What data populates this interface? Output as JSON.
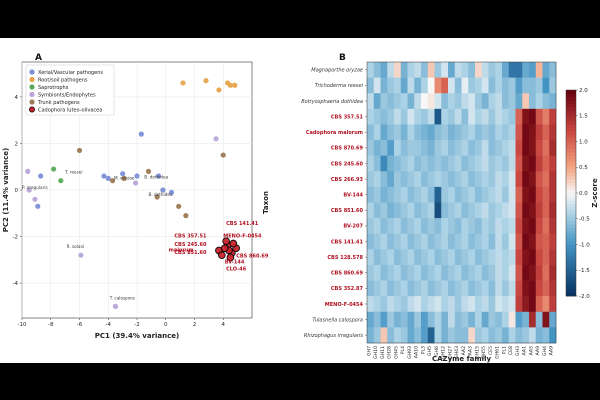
{
  "chart_data": [
    {
      "panel": "A",
      "type": "scatter",
      "xlabel": "PC1 (39.4% variance)",
      "ylabel": "PC2 (11.4% variance)",
      "xlim": [
        -10,
        6
      ],
      "ylim": [
        -5.5,
        5.5
      ],
      "xticks": [
        -10,
        -8,
        -6,
        -4,
        -2,
        0,
        2,
        4
      ],
      "yticks": [
        -4,
        -2,
        0,
        2,
        4
      ],
      "grid": true,
      "legend": "top-left",
      "series": [
        {
          "name": "Xerial/Vascular pathogens",
          "color": "#7a8fd6",
          "points": [
            [
              -8.7,
              0.6
            ],
            [
              -4.3,
              0.6
            ],
            [
              -4.0,
              0.5
            ],
            [
              -3.0,
              0.7
            ],
            [
              -2.0,
              0.6
            ],
            [
              -1.7,
              2.4
            ],
            [
              -0.5,
              0.6
            ],
            [
              -0.2,
              0.0
            ],
            [
              0.4,
              -0.1
            ],
            [
              -8.9,
              -0.7
            ]
          ]
        },
        {
          "name": "Root/soil pathogens",
          "color": "#e6a44a",
          "points": [
            [
              1.2,
              4.6
            ],
            [
              2.8,
              4.7
            ],
            [
              3.7,
              4.3
            ],
            [
              4.3,
              4.6
            ],
            [
              4.5,
              4.5
            ],
            [
              4.8,
              4.5
            ]
          ]
        },
        {
          "name": "Saprotrophs",
          "color": "#5aaa5a",
          "points": [
            [
              -7.8,
              0.9
            ],
            [
              -7.3,
              0.4
            ]
          ]
        },
        {
          "name": "Symbionts/Endophytes",
          "color": "#b8a6d8",
          "points": [
            [
              -9.6,
              0.8
            ],
            [
              -9.5,
              0.0
            ],
            [
              -9.1,
              -0.4
            ],
            [
              -5.9,
              -2.8
            ],
            [
              -2.1,
              0.3
            ],
            [
              3.5,
              2.2
            ],
            [
              -3.5,
              -5.0
            ]
          ]
        },
        {
          "name": "Trunk pathogens",
          "color": "#9c7a52",
          "points": [
            [
              -6.0,
              1.7
            ],
            [
              -3.7,
              0.4
            ],
            [
              -2.9,
              0.5
            ],
            [
              -1.2,
              0.8
            ],
            [
              0.9,
              -0.7
            ],
            [
              1.4,
              -1.1
            ],
            [
              4.0,
              1.5
            ],
            [
              -0.6,
              -0.3
            ]
          ]
        },
        {
          "name": "Cadophora luteo-olivacea",
          "color": "#c8232c",
          "points": [
            [
              3.7,
              -2.6
            ],
            [
              4.3,
              -2.4
            ],
            [
              4.6,
              -2.7
            ],
            [
              4.5,
              -2.9
            ],
            [
              4.9,
              -2.5
            ],
            [
              4.2,
              -2.2
            ],
            [
              3.9,
              -2.8
            ],
            [
              4.7,
              -2.3
            ],
            [
              4.4,
              -2.6
            ],
            [
              4.1,
              -2.5
            ]
          ]
        }
      ],
      "annotations_gray": [
        {
          "text": "M. oryzae",
          "x": -3.6,
          "y": 0.45
        },
        {
          "text": "T. reesei",
          "x": -7.0,
          "y": 0.7
        },
        {
          "text": "B. dothidea",
          "x": -1.5,
          "y": 0.5
        },
        {
          "text": "P. irregularis",
          "x": -10.0,
          "y": 0.05
        },
        {
          "text": "R. solani",
          "x": -6.9,
          "y": -2.5
        },
        {
          "text": "T. calospora",
          "x": -3.9,
          "y": -4.7
        },
        {
          "text": "B. dothidea",
          "x": -1.2,
          "y": -0.25
        }
      ],
      "annotations_red": [
        {
          "text": "CBS 141.41",
          "x": 4.2,
          "y": -1.5
        },
        {
          "text": "CBS 357.51",
          "x": 0.6,
          "y": -2.05
        },
        {
          "text": "MENO-F-0454",
          "x": 4.0,
          "y": -2.05
        },
        {
          "text": "malorum",
          "x": 0.2,
          "y": -2.65
        },
        {
          "text": "CBS 245.60",
          "x": 0.6,
          "y": -2.4
        },
        {
          "text": "CBS 851.60",
          "x": 0.6,
          "y": -2.75
        },
        {
          "text": "CBS 860.69",
          "x": 4.9,
          "y": -2.9
        },
        {
          "text": "BV-144",
          "x": 4.1,
          "y": -3.15
        },
        {
          "text": "CLO-46",
          "x": 4.2,
          "y": -3.45
        }
      ]
    },
    {
      "panel": "B",
      "type": "heatmap",
      "xlabel": "CAZyme family",
      "ylabel": "Taxon",
      "colorbar_label": "Z-score",
      "colorbar_ticks": [
        2.0,
        1.5,
        1.0,
        0.5,
        0.0,
        -0.5,
        -1.0,
        -1.5,
        -2.0
      ],
      "vmin": -2.0,
      "vmax": 2.0,
      "rows": [
        {
          "label": "Magnaporthe oryzae",
          "highlight": false
        },
        {
          "label": "Trichoderma reesei",
          "highlight": false
        },
        {
          "label": "Botryosphaeria dothidea",
          "highlight": false
        },
        {
          "label": "CBS 357.51",
          "highlight": true
        },
        {
          "label": "Cadophora malorum",
          "highlight": true
        },
        {
          "label": "CBS 870.69",
          "highlight": true
        },
        {
          "label": "CBS 245.60",
          "highlight": true
        },
        {
          "label": "CBS 266.93",
          "highlight": true
        },
        {
          "label": "BV-144",
          "highlight": true
        },
        {
          "label": "CBS 851.60",
          "highlight": true
        },
        {
          "label": "BV-207",
          "highlight": true
        },
        {
          "label": "CBS 141.41",
          "highlight": true
        },
        {
          "label": "CBS 128.578",
          "highlight": true
        },
        {
          "label": "CBS 860.69",
          "highlight": true
        },
        {
          "label": "CBS 352.87",
          "highlight": true
        },
        {
          "label": "MENO-F-0454",
          "highlight": true
        },
        {
          "label": "Tulasnella calospora",
          "highlight": false
        },
        {
          "label": "Rhizophagus irregularis",
          "highlight": false
        }
      ],
      "columns": [
        "GH7",
        "GH10",
        "GH11",
        "GH28",
        "GH45",
        "PL4",
        "GH93",
        "AA10",
        "PL3",
        "GH5",
        "GH6",
        "GH12",
        "GH27",
        "GH43",
        "AA2",
        "AA3",
        "GH15",
        "GH55",
        "CE5",
        "GH61",
        "PL1",
        "CE8",
        "GH3",
        "AA1",
        "AA5",
        "AA9",
        "GH4",
        "AA9"
      ],
      "values": [
        [
          -0.4,
          -0.6,
          -0.8,
          -0.3,
          0.2,
          -0.7,
          -0.4,
          -0.3,
          -0.6,
          0.3,
          -0.5,
          -0.2,
          -0.8,
          -0.3,
          -0.4,
          -0.6,
          0.2,
          -0.3,
          -0.5,
          -0.4,
          -0.8,
          -1.3,
          -1.3,
          -0.8,
          -0.9,
          0.4,
          -0.8,
          -0.6
        ],
        [
          -0.6,
          -0.2,
          -0.7,
          -0.5,
          -0.4,
          -0.8,
          -0.3,
          -0.7,
          -0.4,
          0.0,
          0.7,
          1.0,
          -0.2,
          -0.6,
          -0.1,
          -0.5,
          -0.4,
          -0.2,
          -0.6,
          -0.4,
          -0.6,
          -0.5,
          -0.9,
          -0.6,
          -0.6,
          -0.5,
          -1.0,
          -0.5
        ],
        [
          -0.3,
          -0.8,
          -0.5,
          -0.6,
          -0.5,
          -0.4,
          -0.7,
          -0.3,
          0.0,
          0.1,
          -0.2,
          -0.6,
          -0.4,
          -0.5,
          -0.3,
          -0.2,
          -0.5,
          -0.7,
          -0.4,
          -0.3,
          -0.6,
          -0.5,
          -0.8,
          0.3,
          -0.6,
          -0.4,
          -0.6,
          -0.7
        ],
        [
          -0.4,
          -0.5,
          -0.6,
          -0.5,
          -0.3,
          -0.5,
          -0.2,
          -0.4,
          -0.5,
          -0.3,
          -1.6,
          -0.4,
          -0.5,
          -0.3,
          -0.6,
          -0.2,
          -0.4,
          -0.3,
          -0.5,
          -0.3,
          -0.4,
          -0.5,
          1.0,
          1.8,
          1.9,
          1.1,
          0.8,
          1.3
        ],
        [
          -0.6,
          -0.4,
          -0.8,
          -0.6,
          -0.5,
          -0.7,
          -0.4,
          -0.6,
          -0.7,
          -0.8,
          -0.6,
          -0.5,
          -0.7,
          -0.6,
          -0.5,
          -0.4,
          -0.6,
          -0.5,
          -0.6,
          -0.4,
          -0.5,
          -0.4,
          1.1,
          1.9,
          1.8,
          1.3,
          1.0,
          1.4
        ],
        [
          -0.5,
          -0.7,
          -0.6,
          -0.9,
          -0.4,
          -0.6,
          -0.5,
          -0.5,
          -0.6,
          -0.7,
          -0.5,
          -0.4,
          -0.6,
          -0.5,
          -0.4,
          -0.6,
          -0.5,
          -0.3,
          -0.6,
          -0.5,
          -0.4,
          -0.3,
          1.2,
          1.9,
          1.8,
          1.2,
          0.9,
          1.5
        ],
        [
          -0.4,
          -0.6,
          -1.1,
          -0.7,
          -0.6,
          -0.5,
          -0.4,
          -0.6,
          -0.5,
          -0.6,
          -0.5,
          -0.6,
          -0.5,
          -0.4,
          -0.6,
          -0.5,
          -0.4,
          -0.3,
          -0.5,
          -0.4,
          -0.5,
          -0.3,
          1.1,
          1.8,
          1.9,
          1.3,
          1.0,
          1.3
        ],
        [
          -0.5,
          -0.4,
          -0.6,
          -0.8,
          -0.5,
          -0.6,
          -0.5,
          -0.4,
          -0.6,
          -0.5,
          -0.4,
          -0.5,
          -0.6,
          -0.5,
          -0.4,
          -0.6,
          -0.5,
          -0.4,
          -0.5,
          -0.3,
          -0.4,
          -0.2,
          1.2,
          1.9,
          1.8,
          1.1,
          0.9,
          1.4
        ],
        [
          -0.6,
          -0.5,
          -0.7,
          -0.6,
          -0.5,
          -0.4,
          -0.6,
          -0.5,
          -0.4,
          -0.6,
          -1.5,
          -0.5,
          -0.4,
          -0.6,
          -0.5,
          -0.4,
          -0.6,
          -0.5,
          -0.4,
          -0.3,
          -0.5,
          -0.2,
          1.0,
          1.8,
          1.9,
          1.2,
          1.0,
          1.4
        ],
        [
          -0.4,
          -0.6,
          -0.5,
          -0.7,
          -0.6,
          -0.5,
          -0.4,
          -0.6,
          -0.5,
          -0.4,
          -1.7,
          -0.6,
          -0.5,
          -0.4,
          -0.6,
          -0.5,
          -0.4,
          -0.3,
          -0.5,
          -0.4,
          -0.3,
          -0.2,
          1.1,
          1.9,
          1.8,
          1.3,
          1.0,
          1.5
        ],
        [
          -0.5,
          -0.4,
          -0.6,
          -0.5,
          -0.4,
          -0.6,
          -0.5,
          -0.4,
          -0.6,
          -0.5,
          -0.6,
          -0.4,
          -0.5,
          -0.6,
          -0.4,
          -0.5,
          -0.6,
          -0.4,
          -0.5,
          -0.3,
          -0.4,
          -0.3,
          1.2,
          1.8,
          1.9,
          1.2,
          0.9,
          1.4
        ],
        [
          -0.6,
          -0.5,
          -0.4,
          -0.6,
          -0.5,
          -0.4,
          -0.6,
          -0.5,
          -0.4,
          -0.6,
          -0.5,
          -0.4,
          -0.6,
          -0.5,
          -0.4,
          -0.6,
          -0.5,
          -0.4,
          -0.6,
          -0.3,
          -0.5,
          -0.2,
          1.1,
          1.9,
          1.8,
          1.1,
          1.0,
          1.3
        ],
        [
          -0.4,
          -0.6,
          -0.5,
          -0.4,
          -0.6,
          -0.5,
          -0.4,
          -0.6,
          -0.5,
          -0.4,
          -0.6,
          -0.5,
          -0.4,
          -0.6,
          -0.5,
          -0.4,
          -0.6,
          -0.5,
          -0.4,
          -0.3,
          -0.4,
          -0.3,
          1.2,
          1.8,
          1.9,
          1.2,
          1.0,
          1.4
        ],
        [
          -0.5,
          -0.4,
          -0.6,
          -0.5,
          -0.4,
          -0.6,
          -0.5,
          -0.4,
          -0.6,
          -0.5,
          -0.4,
          -0.6,
          -0.5,
          -0.4,
          -0.6,
          -0.5,
          -0.4,
          -0.6,
          -0.5,
          -0.3,
          -0.4,
          -0.2,
          1.1,
          1.9,
          1.8,
          1.3,
          0.9,
          1.5
        ],
        [
          -0.6,
          -0.5,
          -0.4,
          -0.6,
          -0.5,
          -0.4,
          -0.6,
          -0.5,
          -0.4,
          -0.6,
          -0.5,
          -0.4,
          -0.6,
          -0.5,
          -0.4,
          -0.6,
          -0.5,
          -0.4,
          -0.6,
          -0.3,
          -0.5,
          -0.3,
          1.2,
          1.8,
          1.9,
          1.2,
          1.0,
          1.4
        ],
        [
          -0.3,
          -0.4,
          -0.5,
          -0.3,
          -0.4,
          -0.5,
          -0.3,
          -0.2,
          -0.4,
          -0.3,
          -0.2,
          -0.4,
          -0.3,
          -0.5,
          -0.3,
          -0.2,
          -0.4,
          -0.3,
          -0.5,
          -0.2,
          -0.3,
          -0.2,
          1.3,
          1.7,
          1.9,
          1.0,
          0.7,
          1.3
        ],
        [
          -0.8,
          -0.6,
          -0.9,
          -0.5,
          -0.7,
          -0.6,
          -0.8,
          -0.5,
          -0.9,
          -0.6,
          -0.4,
          -0.7,
          -0.3,
          -0.6,
          -0.5,
          -0.7,
          -0.4,
          -0.8,
          -0.5,
          -0.6,
          -0.4,
          0.1,
          -0.9,
          -0.7,
          1.5,
          -0.6,
          1.8,
          -0.8
        ],
        [
          -0.7,
          -0.5,
          0.3,
          -0.6,
          -0.4,
          -0.5,
          -0.8,
          -0.6,
          -0.9,
          -1.5,
          -0.4,
          -0.7,
          -0.5,
          -0.6,
          -0.6,
          0.2,
          -0.5,
          -0.4,
          -0.6,
          -0.5,
          -0.7,
          -0.4,
          -0.6,
          -0.5,
          -0.3,
          -0.7,
          -0.6,
          -1.0
        ]
      ]
    }
  ]
}
